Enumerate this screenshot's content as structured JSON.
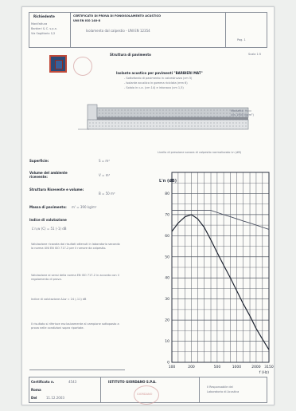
{
  "header": {
    "company_label": "Richiedente",
    "company_lines": [
      "Manifattura",
      "Barbieri & C. s.p.a.",
      "Via Sagittario 1/2"
    ],
    "title_lines": [
      "CERTIFICATO DI PROVA DI FONOISOLAMENTO ACUSTICO",
      "UNI EN ISO 140-8"
    ],
    "subtitle": "Isolamento dal calpestio - UNI EN 12354",
    "page_label": "Pag. 1"
  },
  "section_title": "Struttura di pavimento",
  "scale_label": "Scala 1:5",
  "description_lines": [
    "Isolante acustico per pavimenti \"BARBIERI MAT\"",
    "- Sottofondo di pavimento in calcestruzzo (cm 5)",
    "- Isolante acustico in gomma riciclata (mm 6)",
    "- Solaio in c.a. (cm 14) e intonaco (cm 1,5)"
  ],
  "diagram_label_lines": [
    "Massetto",
    "(cls 1900 kg/m³)"
  ],
  "chart_caption": "Livello di pressione sonora di calpestio normalizzato Ln (dB)",
  "left_fields": [
    {
      "label": "Superficie:",
      "value": "S = m²"
    },
    {
      "label": "Volume del ambiente ricevente:",
      "value": "V = m³"
    },
    {
      "label": "Struttura Ricevente e volume:",
      "value": "B = 50 m³"
    },
    {
      "label": "Massa di pavimento:",
      "value": "m' = 390 kg/m²"
    }
  ],
  "index_title": "Indice di valutazione",
  "index_value": "L'n,w (C) = 51 (-1) dB",
  "notes": [
    "Valutazione ricavata dai risultati ottenuti in laboratorio secondo la norma UNI EN ISO 717-2 per il rumore da calpestio.",
    "Valutazione ai sensi della norma EN ISO 717-2 in accordo con il regolamento di prova.",
    "Indice di valutazione ΔLw = 24 (-11) dB"
  ],
  "final_note": "Il risultato si riferisce esclusivamente al campione sottoposto a prova nelle condizioni sopra riportate.",
  "chart_data": {
    "type": "line",
    "title": "",
    "xlabel": "f (Hz)",
    "ylabel": "L'n (dB)",
    "x": [
      100,
      125,
      160,
      200,
      250,
      315,
      400,
      500,
      630,
      800,
      1000,
      1250,
      1600,
      2000,
      2500,
      3150
    ],
    "x_tick_labels": [
      "100",
      "200",
      "500",
      "1000",
      "2000",
      "3150"
    ],
    "y_tick_labels": [
      "80",
      "70",
      "60",
      "50",
      "40",
      "30",
      "20",
      "10",
      "0"
    ],
    "ylim": [
      0,
      90
    ],
    "series": [
      {
        "name": "",
        "values": [
          62,
          66,
          69,
          70,
          68,
          64,
          58,
          52,
          46,
          40,
          34,
          28,
          22,
          16,
          11,
          6
        ]
      },
      {
        "name": "",
        "values": [
          72,
          72,
          72,
          72,
          72,
          72,
          72,
          71,
          70,
          69,
          68,
          67,
          66,
          65,
          64,
          63
        ]
      }
    ],
    "grid": true
  },
  "footer": {
    "cert_label": "Certificato n.",
    "cert_value": "4543",
    "date_label": "Roma",
    "lab_lines": [
      "ISTITUTO GIORDANO S.P.A."
    ],
    "signatures": [
      "Il Responsabile del",
      "Laboratorio di Acustica"
    ],
    "date_value": "Del",
    "date_text": "11.12.2003"
  },
  "stamp_text": "GIORDANO"
}
